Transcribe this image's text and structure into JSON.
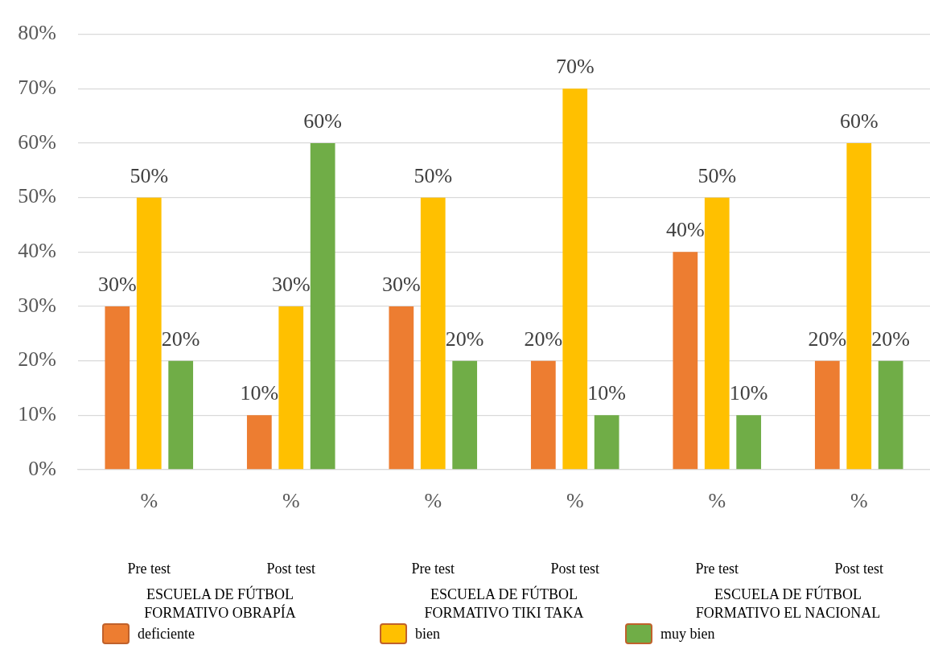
{
  "chart_data": {
    "type": "bar",
    "categories": [
      "%",
      "%",
      "%",
      "%",
      "%",
      "%"
    ],
    "series": [
      {
        "name": "deficiente",
        "color": "#ed7d31",
        "values": [
          30,
          10,
          30,
          20,
          40,
          20
        ],
        "value_labels": [
          "30%",
          "10%",
          "30%",
          "20%",
          "40%",
          "20%"
        ]
      },
      {
        "name": "bien",
        "color": "#ffc000",
        "values": [
          50,
          30,
          50,
          70,
          50,
          60
        ],
        "value_labels": [
          "50%",
          "30%",
          "50%",
          "70%",
          "50%",
          "60%"
        ]
      },
      {
        "name": "muy bien",
        "color": "#70ad47",
        "values": [
          20,
          60,
          20,
          10,
          10,
          20
        ],
        "value_labels": [
          "20%",
          "60%",
          "20%",
          "10%",
          "10%",
          "20%"
        ]
      }
    ],
    "ylim": [
      0,
      80
    ],
    "yticks": [
      {
        "value": 0,
        "label": "0%"
      },
      {
        "value": 10,
        "label": "10%"
      },
      {
        "value": 20,
        "label": "20%"
      },
      {
        "value": 30,
        "label": "30%"
      },
      {
        "value": 40,
        "label": "40%"
      },
      {
        "value": 50,
        "label": "50%"
      },
      {
        "value": 60,
        "label": "60%"
      },
      {
        "value": 70,
        "label": "70%"
      },
      {
        "value": 80,
        "label": "80%"
      }
    ],
    "grid": "y",
    "legend": "bottom",
    "annotations": [
      "Pre test",
      "Post test",
      "Pre test",
      "Post test",
      "Pre test",
      "Post test",
      "ESCUELA DE FÚTBOL FORMATIVO OBRAPÍA",
      "ESCUELA DE FÚTBOL FORMATIVO TIKI TAKA",
      "ESCUELA DE FÚTBOL FORMATIVO EL NACIONAL"
    ]
  }
}
